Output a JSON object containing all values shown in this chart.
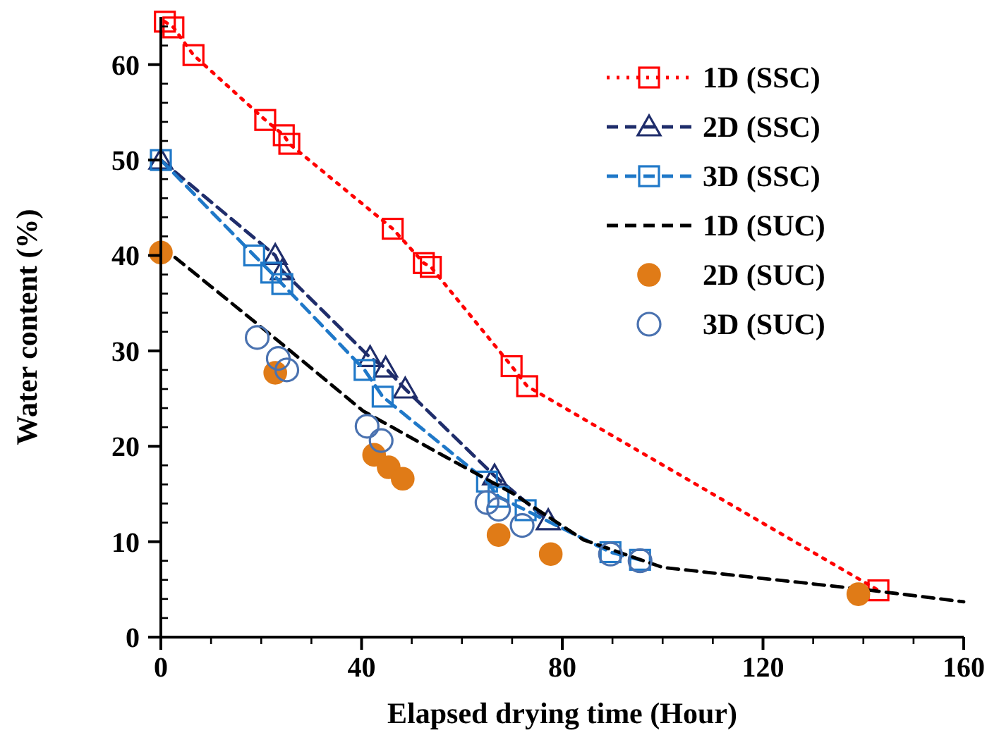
{
  "chart_data": {
    "type": "line",
    "xlabel": "Elapsed drying time (Hour)",
    "ylabel": "Water content (%)",
    "xlim": [
      0,
      160
    ],
    "ylim": [
      0,
      65
    ],
    "xticks": [
      0,
      {
        "value": 10,
        "label": null
      },
      {
        "value": 20,
        "label": null
      },
      {
        "value": 30,
        "label": null
      },
      40,
      {
        "value": 50,
        "label": null
      },
      {
        "value": 60,
        "label": null
      },
      {
        "value": 70,
        "label": null
      },
      80,
      {
        "value": 90,
        "label": null
      },
      {
        "value": 100,
        "label": null
      },
      {
        "value": 110,
        "label": null
      },
      120,
      {
        "value": 130,
        "label": null
      },
      {
        "value": 140,
        "label": null
      },
      {
        "value": 150,
        "label": null
      },
      160
    ],
    "yticks": [
      0,
      {
        "value": 2,
        "label": null
      },
      {
        "value": 4,
        "label": null
      },
      {
        "value": 6,
        "label": null
      },
      {
        "value": 8,
        "label": null
      },
      10,
      {
        "value": 12,
        "label": null
      },
      {
        "value": 14,
        "label": null
      },
      {
        "value": 16,
        "label": null
      },
      {
        "value": 18,
        "label": null
      },
      20,
      {
        "value": 22,
        "label": null
      },
      {
        "value": 24,
        "label": null
      },
      {
        "value": 26,
        "label": null
      },
      {
        "value": 28,
        "label": null
      },
      30,
      {
        "value": 32,
        "label": null
      },
      {
        "value": 34,
        "label": null
      },
      {
        "value": 36,
        "label": null
      },
      {
        "value": 38,
        "label": null
      },
      40,
      {
        "value": 42,
        "label": null
      },
      {
        "value": 44,
        "label": null
      },
      {
        "value": 46,
        "label": null
      },
      {
        "value": 48,
        "label": null
      },
      50,
      {
        "value": 52,
        "label": null
      },
      {
        "value": 54,
        "label": null
      },
      {
        "value": 56,
        "label": null
      },
      {
        "value": 58,
        "label": null
      },
      60,
      {
        "value": 62,
        "label": null
      },
      {
        "value": 64,
        "label": null
      }
    ],
    "grid": false,
    "legend": "top right",
    "series": [
      {
        "name": "1D (SSC)",
        "color": "#ff0000",
        "marker": "square",
        "line_style": "dotted",
        "x": [
          0.8,
          2.5,
          6.5,
          20.8,
          24.5,
          25.6,
          46.2,
          52.4,
          53.8,
          69.9,
          73,
          143
        ],
        "values": [
          64.5,
          63.9,
          61,
          54.2,
          52.6,
          51.7,
          42.8,
          39.2,
          38.8,
          28.4,
          26.3,
          4.9
        ]
      },
      {
        "name": "2D (SSC)",
        "color": "#1f2d6b",
        "marker": "triangle",
        "line_style": "dashed",
        "x": [
          0,
          22.8,
          24.2,
          41.7,
          44.8,
          48.7,
          66.5,
          77.2
        ],
        "values": [
          50,
          40,
          38.4,
          29.3,
          28.2,
          26,
          16.9,
          12.2
        ]
      },
      {
        "name": "3D (SSC)",
        "color": "#1f78c8",
        "marker": "square",
        "line_style": "dashed",
        "x": [
          0,
          18.6,
          22,
          24.2,
          40.6,
          44.2,
          65,
          67.3,
          72.7,
          89.6,
          95.5
        ],
        "values": [
          50,
          40,
          38.2,
          37,
          28,
          25.2,
          16.3,
          14.7,
          13.3,
          8.9,
          8.1
        ]
      },
      {
        "name": "1D (SUC)",
        "color": "#000000",
        "marker": "none",
        "line_style": "dashed",
        "x": [
          0,
          24.2,
          40.3,
          56,
          70,
          84.2,
          100,
          140,
          160
        ],
        "values": [
          41,
          30.7,
          23.7,
          19.1,
          15.1,
          10.2,
          7.3,
          5,
          3.7
        ]
      },
      {
        "name": "2D (SUC)",
        "type": "scatter",
        "color": "#e07b17",
        "marker": "circle",
        "x": [
          0,
          22.8,
          42.5,
          45.4,
          48.2,
          67.3,
          77.7,
          139
        ],
        "values": [
          40.3,
          27.7,
          19.1,
          17.8,
          16.6,
          10.7,
          8.7,
          4.5
        ]
      },
      {
        "name": "3D (SUC)",
        "type": "scatter",
        "color": "#4a72b0",
        "marker": "circle",
        "line_style": "none",
        "x": [
          19.2,
          23.4,
          25.1,
          41.1,
          43.9,
          65,
          67.3,
          72,
          89.6,
          95.5
        ],
        "values": [
          31.4,
          29.2,
          28,
          22.1,
          20.6,
          14.1,
          13.4,
          11.7,
          8.7,
          8
        ]
      }
    ]
  }
}
